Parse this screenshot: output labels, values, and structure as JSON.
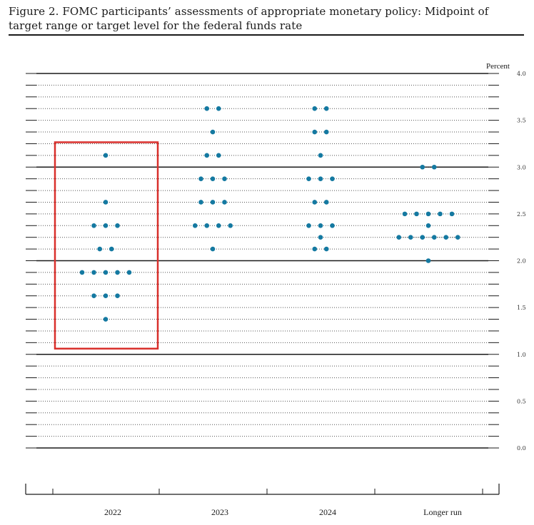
{
  "figure": {
    "title": "Figure 2.  FOMC participants’ assessments of appropriate monetary policy:  Midpoint of target range or target level for the federal funds rate"
  },
  "chart_data": {
    "type": "scatter",
    "title": "FOMC participants’ assessments of appropriate monetary policy: Midpoint of target range or target level for the federal funds rate",
    "ylabel": "Percent",
    "xlabel": "",
    "ylim": [
      0.0,
      4.0
    ],
    "ytick_step": 0.125,
    "ytick_labels": [
      "4.0",
      "3.5",
      "3.0",
      "2.5",
      "2.0",
      "1.5",
      "1.0",
      "0.5",
      "0.0"
    ],
    "categories": [
      "2022",
      "2023",
      "2024",
      "Longer run"
    ],
    "colors": {
      "dot": "#1479a1",
      "highlight": "#d9302c",
      "grid": "#555555",
      "axis": "#1a1a1a"
    },
    "highlight": {
      "category": "2022",
      "y_range": [
        1.0,
        3.25
      ]
    },
    "series": [
      {
        "name": "2022",
        "points": [
          {
            "y": 3.125,
            "count": 1
          },
          {
            "y": 2.625,
            "count": 1
          },
          {
            "y": 2.375,
            "count": 3
          },
          {
            "y": 2.125,
            "count": 2
          },
          {
            "y": 1.875,
            "count": 5
          },
          {
            "y": 1.625,
            "count": 3
          },
          {
            "y": 1.375,
            "count": 1
          }
        ]
      },
      {
        "name": "2023",
        "points": [
          {
            "y": 3.625,
            "count": 2
          },
          {
            "y": 3.375,
            "count": 1
          },
          {
            "y": 3.125,
            "count": 2
          },
          {
            "y": 2.875,
            "count": 3
          },
          {
            "y": 2.625,
            "count": 3
          },
          {
            "y": 2.375,
            "count": 4
          },
          {
            "y": 2.125,
            "count": 1
          }
        ]
      },
      {
        "name": "2024",
        "points": [
          {
            "y": 3.625,
            "count": 2
          },
          {
            "y": 3.375,
            "count": 2
          },
          {
            "y": 3.125,
            "count": 1
          },
          {
            "y": 2.875,
            "count": 3
          },
          {
            "y": 2.625,
            "count": 2
          },
          {
            "y": 2.375,
            "count": 3
          },
          {
            "y": 2.25,
            "count": 1
          },
          {
            "y": 2.125,
            "count": 2
          }
        ]
      },
      {
        "name": "Longer run",
        "points": [
          {
            "y": 3.0,
            "count": 2
          },
          {
            "y": 2.5,
            "count": 5
          },
          {
            "y": 2.375,
            "count": 1
          },
          {
            "y": 2.25,
            "count": 6
          },
          {
            "y": 2.0,
            "count": 1
          }
        ]
      }
    ]
  }
}
